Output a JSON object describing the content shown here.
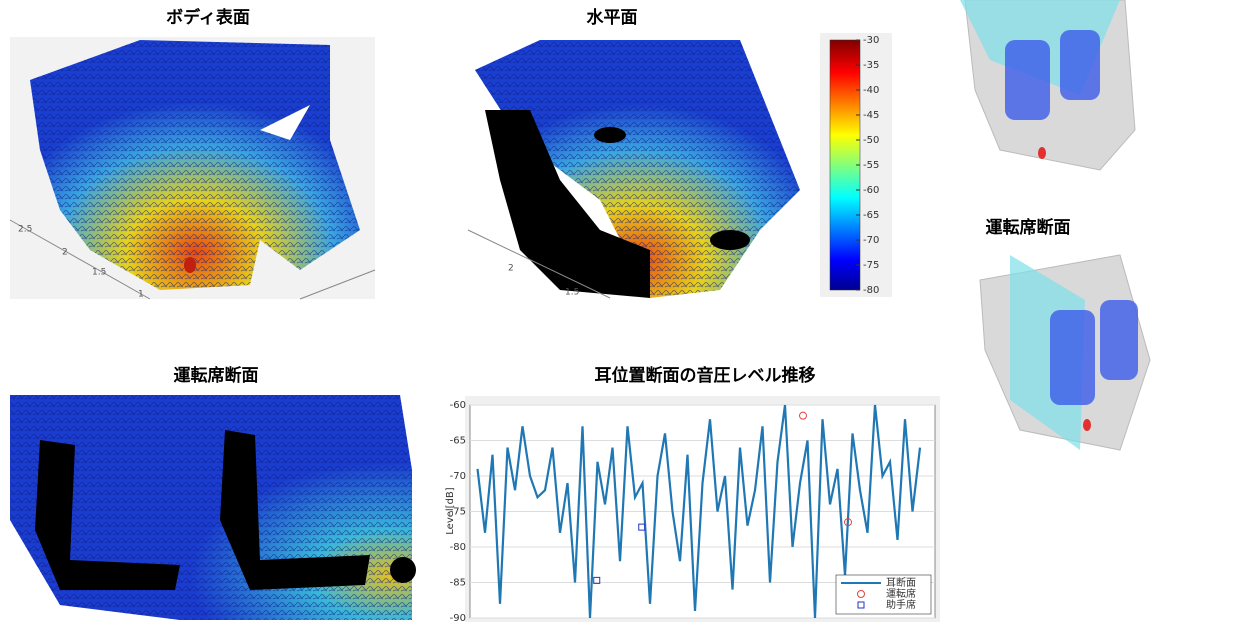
{
  "panels": {
    "body_title": "ボディ表面",
    "horizontal_title": "水平面",
    "driver_title_right": "運転席断面",
    "driver_title_bottom": "運転席断面",
    "body_axis_ticks": [
      "2.5",
      "2",
      "1.5",
      "1"
    ],
    "horizontal_axis_ticks": [
      "2",
      "1.5"
    ]
  },
  "colorbar": {
    "lim": [
      -80,
      -30
    ],
    "ticks": [
      -30,
      -35,
      -40,
      -45,
      -50,
      -55,
      -60,
      -65,
      -70,
      -75,
      -80
    ]
  },
  "chart_data": {
    "type": "line",
    "title": "耳位置断面の音圧レベル推移",
    "y_label": "Level[dB]",
    "xlim": [
      -1,
      61
    ],
    "ylim": [
      -90,
      -60
    ],
    "yticks": [
      -90,
      -85,
      -80,
      -75,
      -70,
      -65,
      -60
    ],
    "grid": true,
    "legend": "lower-right",
    "series": [
      {
        "name": "耳断面",
        "color": "#1f77b4",
        "style": "line",
        "x": [
          0,
          1,
          2,
          3,
          4,
          5,
          6,
          7,
          8,
          9,
          10,
          11,
          12,
          13,
          14,
          15,
          16,
          17,
          18,
          19,
          20,
          21,
          22,
          23,
          24,
          25,
          26,
          27,
          28,
          29,
          30,
          31,
          32,
          33,
          34,
          35,
          36,
          37,
          38,
          39,
          40,
          41,
          42,
          43,
          44,
          45,
          46,
          47,
          48,
          49,
          50,
          51,
          52,
          53,
          54,
          55,
          56,
          57,
          58,
          59
        ],
        "values": [
          -69,
          -78,
          -67,
          -88,
          -66,
          -72,
          -63,
          -70,
          -73,
          -72,
          -66,
          -78,
          -71,
          -85,
          -63,
          -90,
          -68,
          -74,
          -66,
          -82,
          -63,
          -73,
          -71,
          -88,
          -70,
          -64,
          -75,
          -82,
          -67,
          -89,
          -71,
          -62,
          -75,
          -70,
          -86,
          -66,
          -77,
          -72,
          -63,
          -85,
          -68,
          -60,
          -80,
          -71,
          -65,
          -90,
          -62,
          -74,
          -69,
          -84,
          -64,
          -72,
          -78,
          -60,
          -70,
          -68,
          -79,
          -62,
          -75,
          -66
        ]
      },
      {
        "name": "運転席",
        "color": "#e8403a",
        "style": "circle",
        "x": [
          43.4,
          49.4
        ],
        "values": [
          -61.5,
          -76.5
        ]
      },
      {
        "name": "助手席",
        "color": "#2432c8",
        "style": "square",
        "x": [
          15.9,
          21.9
        ],
        "values": [
          -84.7,
          -77.2
        ]
      }
    ]
  }
}
